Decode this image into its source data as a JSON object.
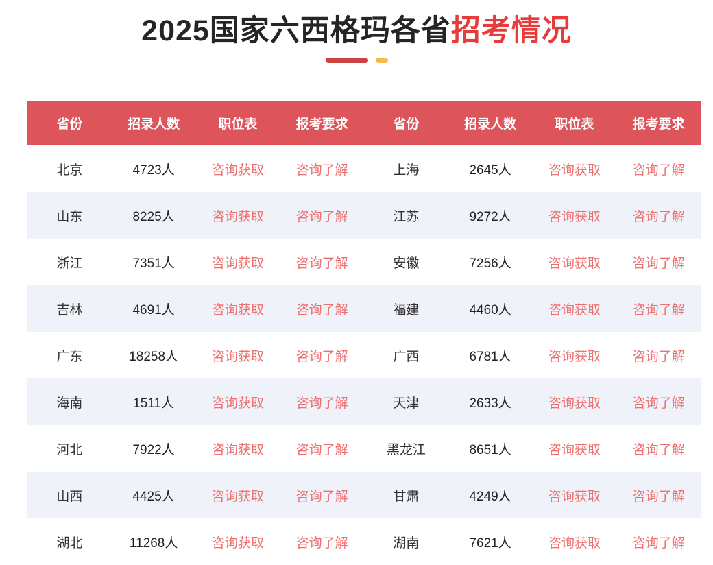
{
  "title": {
    "black_part": "2025国家六西格玛各省",
    "red_part": "招考情况"
  },
  "table": {
    "headers": [
      "省份",
      "招录人数",
      "职位表",
      "报考要求"
    ],
    "position_link_label": "咨询获取",
    "requirement_link_label": "咨询了解",
    "rows": [
      {
        "left": {
          "province": "北京",
          "count": "4723人"
        },
        "right": {
          "province": "上海",
          "count": "2645人"
        }
      },
      {
        "left": {
          "province": "山东",
          "count": "8225人"
        },
        "right": {
          "province": "江苏",
          "count": "9272人"
        }
      },
      {
        "left": {
          "province": "浙江",
          "count": "7351人"
        },
        "right": {
          "province": "安徽",
          "count": "7256人"
        }
      },
      {
        "left": {
          "province": "吉林",
          "count": "4691人"
        },
        "right": {
          "province": "福建",
          "count": "4460人"
        }
      },
      {
        "left": {
          "province": "广东",
          "count": "18258人"
        },
        "right": {
          "province": "广西",
          "count": "6781人"
        }
      },
      {
        "left": {
          "province": "海南",
          "count": "1511人"
        },
        "right": {
          "province": "天津",
          "count": "2633人"
        }
      },
      {
        "left": {
          "province": "河北",
          "count": "7922人"
        },
        "right": {
          "province": "黑龙江",
          "count": "8651人"
        }
      },
      {
        "left": {
          "province": "山西",
          "count": "4425人"
        },
        "right": {
          "province": "甘肃",
          "count": "4249人"
        }
      },
      {
        "left": {
          "province": "湖北",
          "count": "11268人"
        },
        "right": {
          "province": "湖南",
          "count": "7621人"
        }
      }
    ]
  },
  "colors": {
    "header_bg": "#dd545b",
    "alt_row_bg": "#f0f2fa",
    "title_red": "#e83c3c",
    "link_red": "#ee6f6f",
    "underline_red": "#cc4343",
    "underline_orange": "#f7ba4f"
  }
}
